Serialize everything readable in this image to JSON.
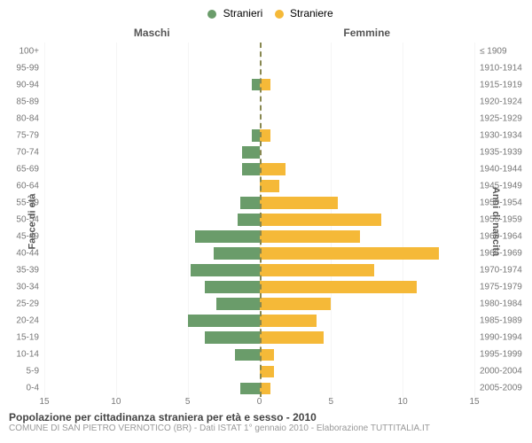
{
  "legend": {
    "series_m": {
      "label": "Stranieri",
      "color": "#6a9c6a"
    },
    "series_f": {
      "label": "Straniere",
      "color": "#f5b938"
    }
  },
  "panels": {
    "left": "Maschi",
    "right": "Femmine"
  },
  "axes": {
    "left_title": "Fasce di età",
    "right_title": "Anni di nascita",
    "xmin": 0,
    "xmax": 15,
    "xticks": [
      15,
      10,
      5,
      0,
      5,
      10,
      15
    ]
  },
  "grid_color": "#f5f5f5",
  "rows": [
    {
      "age": "100+",
      "birth": "≤ 1909",
      "m": 0,
      "f": 0
    },
    {
      "age": "95-99",
      "birth": "1910-1914",
      "m": 0,
      "f": 0
    },
    {
      "age": "90-94",
      "birth": "1915-1919",
      "m": 0.5,
      "f": 0.8
    },
    {
      "age": "85-89",
      "birth": "1920-1924",
      "m": 0,
      "f": 0
    },
    {
      "age": "80-84",
      "birth": "1925-1929",
      "m": 0,
      "f": 0
    },
    {
      "age": "75-79",
      "birth": "1930-1934",
      "m": 0.5,
      "f": 0.8
    },
    {
      "age": "70-74",
      "birth": "1935-1939",
      "m": 1.2,
      "f": 0
    },
    {
      "age": "65-69",
      "birth": "1940-1944",
      "m": 1.2,
      "f": 1.8
    },
    {
      "age": "60-64",
      "birth": "1945-1949",
      "m": 0,
      "f": 1.4
    },
    {
      "age": "55-59",
      "birth": "1950-1954",
      "m": 1.3,
      "f": 5.5
    },
    {
      "age": "50-54",
      "birth": "1955-1959",
      "m": 1.5,
      "f": 8.5
    },
    {
      "age": "45-49",
      "birth": "1960-1964",
      "m": 4.5,
      "f": 7
    },
    {
      "age": "40-44",
      "birth": "1965-1969",
      "m": 3.2,
      "f": 12.5
    },
    {
      "age": "35-39",
      "birth": "1970-1974",
      "m": 4.8,
      "f": 8
    },
    {
      "age": "30-34",
      "birth": "1975-1979",
      "m": 3.8,
      "f": 11
    },
    {
      "age": "25-29",
      "birth": "1980-1984",
      "m": 3,
      "f": 5
    },
    {
      "age": "20-24",
      "birth": "1985-1989",
      "m": 5,
      "f": 4
    },
    {
      "age": "15-19",
      "birth": "1990-1994",
      "m": 3.8,
      "f": 4.5
    },
    {
      "age": "10-14",
      "birth": "1995-1999",
      "m": 1.7,
      "f": 1
    },
    {
      "age": "5-9",
      "birth": "2000-2004",
      "m": 0,
      "f": 1
    },
    {
      "age": "0-4",
      "birth": "2005-2009",
      "m": 1.3,
      "f": 0.8
    }
  ],
  "footer": {
    "title": "Popolazione per cittadinanza straniera per età e sesso - 2010",
    "subtitle": "COMUNE DI SAN PIETRO VERNOTICO (BR) - Dati ISTAT 1° gennaio 2010 - Elaborazione TUTTITALIA.IT"
  }
}
